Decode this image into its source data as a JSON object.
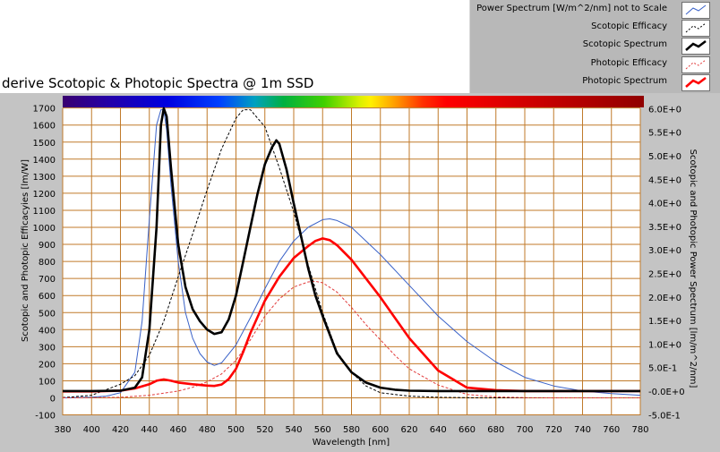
{
  "chart_data": {
    "type": "line",
    "title": "derive Scotopic & Photopic Spectra @ 1m SSD",
    "xlabel": "Wavelength [nm]",
    "ylabel_left": "Scotopic and Photopic Efficacyies [lm/W]",
    "ylabel_right": "Scotopic and Photopic Power Spectrum [lm/m^2/nm]",
    "xlim": [
      380,
      780
    ],
    "ylim_left": [
      -100,
      1750
    ],
    "ylim_right": [
      -0.5,
      6.2
    ],
    "x_ticks": [
      "380",
      "400",
      "420",
      "440",
      "460",
      "480",
      "500",
      "520",
      "540",
      "560",
      "580",
      "600",
      "620",
      "640",
      "660",
      "680",
      "700",
      "720",
      "740",
      "760",
      "780"
    ],
    "y_left_ticks": [
      "-100",
      "0",
      "100",
      "200",
      "300",
      "400",
      "500",
      "600",
      "700",
      "800",
      "900",
      "1000",
      "1100",
      "1200",
      "1300",
      "1400",
      "1500",
      "1600",
      "1700"
    ],
    "y_right_ticks": [
      "-5.0E-1",
      "-0.0E+0",
      "5.0E-1",
      "1.0E+0",
      "1.5E+0",
      "2.0E+0",
      "2.5E+0",
      "3.0E+0",
      "3.5E+0",
      "4.0E+0",
      "4.5E+0",
      "5.0E+0",
      "5.5E+0",
      "6.0E+0"
    ],
    "grid": true,
    "legend_position": "top-right",
    "series": [
      {
        "name": "Power Spectrum [W/m^2/nm] not to Scale",
        "axis": "left",
        "color": "#3a62c8",
        "style": "solid-thin",
        "x": [
          380,
          400,
          410,
          420,
          430,
          435,
          440,
          445,
          448,
          450,
          452,
          455,
          460,
          465,
          470,
          475,
          480,
          485,
          490,
          500,
          510,
          520,
          530,
          540,
          550,
          560,
          565,
          570,
          580,
          590,
          600,
          620,
          640,
          660,
          680,
          700,
          720,
          740,
          760,
          780
        ],
        "y": [
          0,
          4,
          10,
          30,
          150,
          450,
          1050,
          1600,
          1690,
          1690,
          1570,
          1250,
          800,
          500,
          350,
          260,
          210,
          190,
          205,
          310,
          470,
          640,
          800,
          920,
          1000,
          1045,
          1050,
          1040,
          1000,
          920,
          840,
          660,
          480,
          330,
          210,
          120,
          70,
          40,
          25,
          15
        ]
      },
      {
        "name": "Scotopic Efficacy",
        "axis": "left",
        "color": "#000000",
        "style": "dashed",
        "x": [
          380,
          400,
          420,
          430,
          440,
          450,
          460,
          470,
          480,
          490,
          500,
          505,
          510,
          520,
          530,
          540,
          550,
          560,
          570,
          580,
          590,
          600,
          620,
          640,
          660,
          680,
          700,
          780
        ],
        "y": [
          1,
          15,
          80,
          130,
          250,
          450,
          710,
          960,
          1220,
          1460,
          1640,
          1690,
          1690,
          1590,
          1350,
          1090,
          780,
          500,
          270,
          150,
          70,
          30,
          10,
          3,
          1,
          0,
          0,
          0
        ]
      },
      {
        "name": "Scotopic Spectrum",
        "axis": "left",
        "color": "#000000",
        "style": "solid-thick",
        "x": [
          380,
          400,
          420,
          430,
          435,
          440,
          445,
          448,
          450,
          452,
          455,
          460,
          465,
          470,
          475,
          480,
          485,
          490,
          495,
          500,
          505,
          510,
          515,
          520,
          525,
          528,
          530,
          535,
          540,
          545,
          550,
          555,
          560,
          570,
          580,
          590,
          600,
          610,
          620,
          640,
          660,
          680,
          700,
          780
        ],
        "y": [
          40,
          40,
          42,
          60,
          120,
          400,
          1000,
          1600,
          1700,
          1650,
          1350,
          900,
          650,
          520,
          450,
          400,
          375,
          385,
          460,
          600,
          800,
          1000,
          1200,
          1370,
          1470,
          1510,
          1490,
          1340,
          1140,
          950,
          760,
          600,
          480,
          260,
          150,
          90,
          60,
          48,
          42,
          40,
          40,
          40,
          40,
          40
        ]
      },
      {
        "name": "Photopic Efficacy",
        "axis": "left",
        "color": "#e23b3b",
        "style": "dashed",
        "x": [
          380,
          400,
          420,
          440,
          460,
          470,
          480,
          490,
          500,
          510,
          520,
          530,
          540,
          550,
          555,
          560,
          570,
          580,
          590,
          600,
          610,
          620,
          640,
          660,
          680,
          700,
          720,
          780
        ],
        "y": [
          0,
          1,
          3,
          15,
          40,
          62,
          94,
          140,
          220,
          340,
          480,
          580,
          650,
          680,
          683,
          675,
          620,
          530,
          430,
          340,
          250,
          170,
          75,
          20,
          5,
          1,
          0,
          0
        ]
      },
      {
        "name": "Photopic Spectrum",
        "axis": "left",
        "color": "#ff0000",
        "style": "solid-thick",
        "x": [
          380,
          400,
          420,
          430,
          440,
          445,
          450,
          455,
          460,
          470,
          480,
          485,
          490,
          495,
          500,
          505,
          510,
          520,
          530,
          540,
          550,
          555,
          560,
          565,
          570,
          580,
          590,
          600,
          610,
          620,
          640,
          660,
          680,
          700,
          780
        ],
        "y": [
          38,
          38,
          42,
          55,
          80,
          100,
          108,
          100,
          90,
          80,
          72,
          70,
          78,
          110,
          170,
          270,
          380,
          570,
          710,
          820,
          890,
          920,
          935,
          925,
          895,
          810,
          700,
          590,
          470,
          350,
          160,
          60,
          45,
          40,
          40
        ]
      }
    ]
  },
  "legend": {
    "items": [
      {
        "label": "Power Spectrum [W/m^2/nm] not to Scale",
        "color": "#3a62c8",
        "style": "solid-thin"
      },
      {
        "label": "Scotopic Efficacy",
        "color": "#000000",
        "style": "dashed"
      },
      {
        "label": "Scotopic Spectrum",
        "color": "#000000",
        "style": "solid-thick"
      },
      {
        "label": "Photopic Efficacy",
        "color": "#e23b3b",
        "style": "dashed"
      },
      {
        "label": "Photopic Spectrum",
        "color": "#ff0000",
        "style": "solid-thick"
      }
    ]
  },
  "colors": {
    "grid": "#c07a2a",
    "plot_background": "#ffffff",
    "frame": "#c4c4c4"
  }
}
